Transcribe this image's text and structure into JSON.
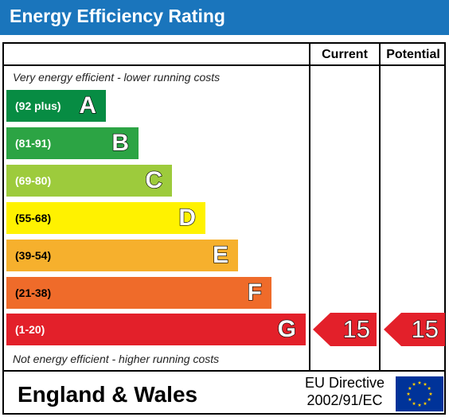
{
  "header": {
    "title": "Energy Efficiency Rating"
  },
  "columns": {
    "current": "Current",
    "potential": "Potential"
  },
  "notes": {
    "top": "Very energy efficient - lower running costs",
    "bottom": "Not energy efficient - higher running costs"
  },
  "chart_data": {
    "type": "bar",
    "bands": [
      {
        "letter": "A",
        "range": "(92 plus)",
        "color": "#078c43",
        "text_color": "#ffffff"
      },
      {
        "letter": "B",
        "range": "(81-91)",
        "color": "#2ca444",
        "text_color": "#ffffff"
      },
      {
        "letter": "C",
        "range": "(69-80)",
        "color": "#9dcb3c",
        "text_color": "#ffffff"
      },
      {
        "letter": "D",
        "range": "(55-68)",
        "color": "#fff200",
        "text_color": "#000000"
      },
      {
        "letter": "E",
        "range": "(39-54)",
        "color": "#f6b02d",
        "text_color": "#000000"
      },
      {
        "letter": "F",
        "range": "(21-38)",
        "color": "#ef6b2a",
        "text_color": "#000000"
      },
      {
        "letter": "G",
        "range": "(1-20)",
        "color": "#e3202a",
        "text_color": "#ffffff"
      }
    ],
    "current": {
      "value": "15",
      "band": "G"
    },
    "potential": {
      "value": "15",
      "band": "G"
    },
    "arrow_color": "#e3202a"
  },
  "footer": {
    "country": "England & Wales",
    "directive_line1": "EU Directive",
    "directive_line2": "2002/91/EC"
  },
  "flag": {
    "background": "#003399",
    "stars": "#ffcc00",
    "icon": "eu-flag-icon"
  }
}
